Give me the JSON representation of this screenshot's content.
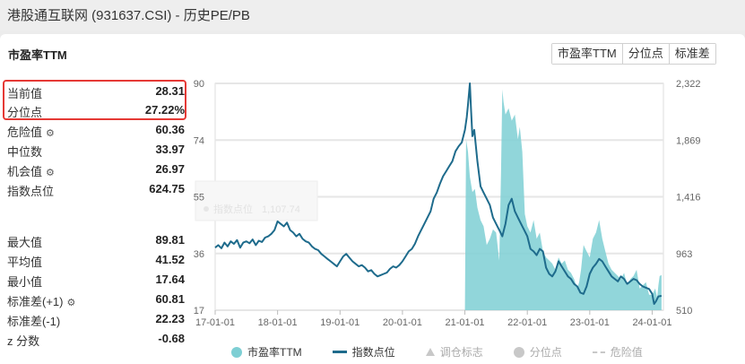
{
  "window_title": "港股通互联网 (931637.CSI) - 历史PE/PB",
  "card_title": "市盈率TTM",
  "tabs": [
    "市盈率TTM",
    "分位点",
    "标准差"
  ],
  "stats_top": [
    {
      "label": "当前值",
      "value": "28.31"
    },
    {
      "label": "分位点",
      "value": "27.22%"
    },
    {
      "label": "危险值",
      "value": "60.36",
      "icon": "gear-icon"
    },
    {
      "label": "中位数",
      "value": "33.97"
    },
    {
      "label": "机会值",
      "value": "26.97",
      "icon": "gear-icon"
    },
    {
      "label": "指数点位",
      "value": "624.75"
    }
  ],
  "stats_bottom": [
    {
      "label": "最大值",
      "value": "89.81"
    },
    {
      "label": "平均值",
      "value": "41.52"
    },
    {
      "label": "最小值",
      "value": "17.64"
    },
    {
      "label": "标准差(+1)",
      "value": "60.81",
      "icon": "gear-icon"
    },
    {
      "label": "标准差(-1)",
      "value": "22.23"
    },
    {
      "label": "z 分数",
      "value": "-0.68"
    }
  ],
  "legend": [
    {
      "label": "市盈率TTM",
      "marker": "dot",
      "color": "#7ecfd4",
      "active": true
    },
    {
      "label": "指数点位",
      "marker": "line",
      "color": "#1e6b8c",
      "active": true
    },
    {
      "label": "调仓标志",
      "marker": "triangle",
      "color": "#c8c8c8",
      "active": false
    },
    {
      "label": "分位点",
      "marker": "dot",
      "color": "#c8c8c8",
      "active": false
    },
    {
      "label": "危险值",
      "marker": "dash",
      "color": "#c8c8c8",
      "active": false
    }
  ],
  "tooltip_ghost": {
    "label": "指数点位",
    "value": "1,107.74"
  },
  "chart_data": {
    "type": "line",
    "x_ticks": [
      "17-01-01",
      "18-01-01",
      "19-01-01",
      "20-01-01",
      "21-01-01",
      "22-01-01",
      "23-01-01",
      "24-01-01"
    ],
    "y_left_ticks": [
      "90",
      "74",
      "55",
      "36",
      "17"
    ],
    "y_right_ticks": [
      "2,322",
      "1,869",
      "1,416",
      "963",
      "510"
    ],
    "y_left_range": [
      17,
      90
    ],
    "y_right_range": [
      510,
      2322
    ],
    "x_range": [
      2017.0,
      2024.18
    ],
    "colors": {
      "pe_fill": "#7ecfd4",
      "index_line": "#1e6b8c",
      "grid": "#e6e6e6"
    },
    "series": [
      {
        "name": "市盈率TTM",
        "axis": "left",
        "x": [
          2021.0,
          2021.02,
          2021.05,
          2021.08,
          2021.12,
          2021.16,
          2021.2,
          2021.25,
          2021.3,
          2021.35,
          2021.4,
          2021.45,
          2021.5,
          2021.55,
          2021.58,
          2021.6,
          2021.62,
          2021.65,
          2021.7,
          2021.75,
          2021.8,
          2021.85,
          2021.88,
          2021.92,
          2021.96,
          2022.0,
          2022.05,
          2022.1,
          2022.15,
          2022.2,
          2022.25,
          2022.3,
          2022.35,
          2022.4,
          2022.45,
          2022.5,
          2022.55,
          2022.6,
          2022.65,
          2022.7,
          2022.75,
          2022.8,
          2022.83,
          2022.86,
          2022.9,
          2022.95,
          2023.0,
          2023.05,
          2023.1,
          2023.15,
          2023.2,
          2023.25,
          2023.3,
          2023.35,
          2023.4,
          2023.45,
          2023.5,
          2023.55,
          2023.6,
          2023.65,
          2023.7,
          2023.75,
          2023.8,
          2023.85,
          2023.9,
          2023.95,
          2024.0,
          2024.05,
          2024.08,
          2024.1,
          2024.12,
          2024.15
        ],
        "values": [
          17.5,
          72,
          68,
          60,
          55,
          56,
          50,
          46,
          44,
          38,
          40,
          43,
          42,
          33,
          62,
          88,
          84,
          80,
          82,
          78,
          80,
          72,
          76,
          68,
          48,
          44,
          42,
          46,
          40,
          42,
          36,
          34,
          33,
          32,
          30,
          34,
          32,
          33,
          30,
          29,
          27,
          24,
          26,
          30,
          38,
          36,
          34,
          40,
          42,
          46,
          40,
          36,
          32,
          30,
          29,
          28,
          27,
          29,
          25,
          27,
          28,
          30,
          24,
          25,
          26,
          22,
          22,
          24,
          21,
          25,
          28,
          28.31
        ]
      },
      {
        "name": "指数点位",
        "axis": "right",
        "x": [
          2017.0,
          2017.05,
          2017.1,
          2017.15,
          2017.2,
          2017.25,
          2017.3,
          2017.35,
          2017.4,
          2017.45,
          2017.5,
          2017.55,
          2017.6,
          2017.65,
          2017.7,
          2017.75,
          2017.8,
          2017.85,
          2017.9,
          2017.95,
          2018.0,
          2018.05,
          2018.1,
          2018.15,
          2018.2,
          2018.25,
          2018.3,
          2018.35,
          2018.4,
          2018.45,
          2018.5,
          2018.55,
          2018.6,
          2018.65,
          2018.7,
          2018.75,
          2018.8,
          2018.85,
          2018.9,
          2018.95,
          2019.0,
          2019.05,
          2019.1,
          2019.15,
          2019.2,
          2019.25,
          2019.3,
          2019.35,
          2019.4,
          2019.45,
          2019.5,
          2019.55,
          2019.6,
          2019.65,
          2019.7,
          2019.75,
          2019.8,
          2019.85,
          2019.9,
          2019.95,
          2020.0,
          2020.05,
          2020.1,
          2020.15,
          2020.2,
          2020.25,
          2020.3,
          2020.35,
          2020.4,
          2020.45,
          2020.5,
          2020.55,
          2020.6,
          2020.65,
          2020.7,
          2020.75,
          2020.8,
          2020.85,
          2020.9,
          2020.95,
          2021.0,
          2021.03,
          2021.05,
          2021.08,
          2021.1,
          2021.12,
          2021.15,
          2021.2,
          2021.25,
          2021.3,
          2021.35,
          2021.4,
          2021.45,
          2021.5,
          2021.55,
          2021.6,
          2021.65,
          2021.7,
          2021.75,
          2021.8,
          2021.85,
          2021.9,
          2021.95,
          2022.0,
          2022.05,
          2022.1,
          2022.15,
          2022.2,
          2022.25,
          2022.3,
          2022.35,
          2022.4,
          2022.45,
          2022.5,
          2022.55,
          2022.6,
          2022.65,
          2022.7,
          2022.75,
          2022.8,
          2022.85,
          2022.9,
          2022.95,
          2023.0,
          2023.05,
          2023.1,
          2023.15,
          2023.2,
          2023.25,
          2023.3,
          2023.35,
          2023.4,
          2023.45,
          2023.5,
          2023.55,
          2023.6,
          2023.65,
          2023.7,
          2023.75,
          2023.8,
          2023.85,
          2023.9,
          2023.95,
          2024.0,
          2024.03,
          2024.06,
          2024.1,
          2024.15
        ],
        "values": [
          1010,
          1030,
          1005,
          1050,
          1020,
          1060,
          1040,
          1070,
          1010,
          1050,
          1060,
          1045,
          1075,
          1030,
          1065,
          1055,
          1090,
          1100,
          1120,
          1150,
          1220,
          1200,
          1180,
          1210,
          1150,
          1130,
          1100,
          1120,
          1080,
          1060,
          1050,
          1020,
          1000,
          990,
          960,
          940,
          920,
          900,
          880,
          860,
          900,
          940,
          960,
          930,
          900,
          880,
          860,
          870,
          850,
          820,
          830,
          800,
          780,
          790,
          800,
          810,
          840,
          860,
          850,
          870,
          900,
          940,
          980,
          1000,
          1040,
          1100,
          1150,
          1200,
          1250,
          1300,
          1400,
          1450,
          1520,
          1580,
          1620,
          1660,
          1700,
          1780,
          1820,
          1850,
          1950,
          2050,
          2150,
          2322,
          2100,
          1900,
          1950,
          1700,
          1500,
          1450,
          1400,
          1350,
          1250,
          1200,
          1150,
          1100,
          1200,
          1350,
          1400,
          1300,
          1250,
          1200,
          1150,
          1100,
          1000,
          980,
          950,
          1000,
          980,
          850,
          800,
          780,
          820,
          900,
          860,
          820,
          780,
          760,
          720,
          700,
          650,
          640,
          700,
          800,
          850,
          880,
          920,
          900,
          860,
          820,
          780,
          760,
          740,
          780,
          760,
          720,
          740,
          760,
          750,
          720,
          700,
          690,
          680,
          640,
          560,
          580,
          620,
          624.75
        ]
      }
    ]
  }
}
